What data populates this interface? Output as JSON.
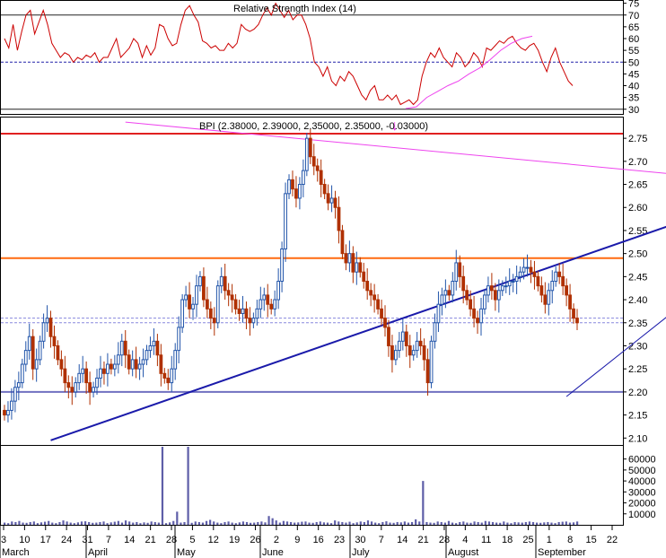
{
  "chart_data": [
    {
      "type": "line",
      "panel": "rsi",
      "title": "Relative Strength Index (14)",
      "ylim": [
        28,
        76
      ],
      "yticks": [
        30,
        35,
        40,
        45,
        50,
        55,
        60,
        65,
        70,
        75
      ],
      "reference_lines": [
        30,
        50,
        70
      ],
      "line_color": "#cc0000",
      "trendline_color": "#ee44ee",
      "series": [
        {
          "values": [
            60,
            56,
            66,
            55,
            63,
            70,
            72,
            62,
            67,
            72,
            66,
            58,
            55,
            52,
            54,
            53,
            50,
            52,
            51,
            53,
            52,
            54,
            50,
            52,
            52,
            56,
            60,
            52,
            54,
            56,
            60,
            58,
            52,
            57,
            53,
            56,
            66,
            65,
            60,
            57,
            58,
            66,
            72,
            74,
            70,
            67,
            59,
            58,
            56,
            57,
            55,
            55,
            58,
            56,
            58,
            66,
            64,
            63,
            64,
            66,
            70,
            73,
            70,
            75,
            72,
            69,
            72,
            68,
            70,
            70,
            66,
            60,
            50,
            48,
            44,
            48,
            42,
            40,
            44,
            42,
            46,
            44,
            40,
            36,
            34,
            38,
            40,
            34,
            34,
            36,
            34,
            36,
            32,
            33,
            34,
            32,
            34,
            44,
            50,
            54,
            52,
            56,
            52,
            50,
            48,
            54,
            52,
            48,
            50,
            54,
            52,
            48,
            56,
            55,
            57,
            59,
            58,
            60,
            61,
            58,
            56,
            55,
            57,
            58,
            55,
            50,
            46,
            52,
            56,
            50,
            46,
            42,
            40
          ]
        },
        {
          "values": [
            30.3,
            31,
            35,
            37.5,
            40,
            42,
            45,
            47.5,
            51,
            55,
            58,
            60,
            61
          ]
        }
      ]
    },
    {
      "type": "candlestick",
      "panel": "price",
      "title": "BPI (2.38000, 2.39000, 2.35000, 2.35000, -0.03000)",
      "ylim": [
        2.085,
        2.795
      ],
      "yticks": [
        2.1,
        2.15,
        2.2,
        2.25,
        2.3,
        2.35,
        2.4,
        2.45,
        2.5,
        2.55,
        2.6,
        2.65,
        2.7,
        2.75
      ],
      "up_color": "#2255aa",
      "down_color": "#b03000",
      "close": [
        2.15,
        2.16,
        2.18,
        2.21,
        2.22,
        2.26,
        2.29,
        2.32,
        2.25,
        2.27,
        2.31,
        2.35,
        2.36,
        2.32,
        2.3,
        2.27,
        2.25,
        2.22,
        2.21,
        2.2,
        2.22,
        2.24,
        2.25,
        2.22,
        2.2,
        2.21,
        2.23,
        2.25,
        2.24,
        2.26,
        2.25,
        2.26,
        2.28,
        2.31,
        2.28,
        2.25,
        2.27,
        2.25,
        2.26,
        2.27,
        2.29,
        2.3,
        2.31,
        2.28,
        2.24,
        2.23,
        2.22,
        2.25,
        2.29,
        2.34,
        2.4,
        2.41,
        2.38,
        2.39,
        2.43,
        2.45,
        2.4,
        2.38,
        2.36,
        2.35,
        2.43,
        2.45,
        2.42,
        2.41,
        2.4,
        2.38,
        2.37,
        2.38,
        2.36,
        2.35,
        2.36,
        2.38,
        2.4,
        2.41,
        2.39,
        2.38,
        2.4,
        2.44,
        2.51,
        2.63,
        2.66,
        2.64,
        2.62,
        2.65,
        2.68,
        2.75,
        2.71,
        2.69,
        2.68,
        2.65,
        2.63,
        2.61,
        2.62,
        2.6,
        2.55,
        2.5,
        2.48,
        2.5,
        2.46,
        2.48,
        2.46,
        2.44,
        2.42,
        2.41,
        2.4,
        2.38,
        2.36,
        2.34,
        2.3,
        2.27,
        2.29,
        2.31,
        2.33,
        2.3,
        2.28,
        2.29,
        2.31,
        2.3,
        2.27,
        2.22,
        2.31,
        2.35,
        2.39,
        2.41,
        2.42,
        2.41,
        2.44,
        2.48,
        2.45,
        2.42,
        2.4,
        2.38,
        2.36,
        2.35,
        2.38,
        2.41,
        2.43,
        2.42,
        2.4,
        2.42,
        2.43,
        2.43,
        2.44,
        2.44,
        2.45,
        2.46,
        2.47,
        2.47,
        2.46,
        2.45,
        2.43,
        2.41,
        2.39,
        2.42,
        2.44,
        2.46,
        2.45,
        2.43,
        2.41,
        2.38,
        2.36,
        2.35
      ],
      "horizontal_lines": [
        {
          "value": 2.76,
          "color": "#e02020"
        },
        {
          "value": 2.49,
          "color": "#ff6a10"
        },
        {
          "value": 2.2,
          "color": "#7070c0"
        },
        {
          "value": 2.36,
          "color": "#8888dd",
          "dashed": true
        },
        {
          "value": 2.35,
          "color": "#8888dd",
          "dashed": true
        }
      ],
      "trendlines": [
        {
          "from": [
            16,
            2.095
          ],
          "to": [
            201,
            2.59
          ],
          "color": "#1a1aaa"
        },
        {
          "from": [
            37,
            2.785
          ],
          "to": [
            215,
            2.655
          ],
          "color": "#ee44ee"
        },
        {
          "from": [
            161,
            2.19
          ],
          "to": [
            210,
            2.49
          ],
          "color": "#1a1aaa"
        }
      ],
      "marker": {
        "index": 110,
        "value": 2.76,
        "glyph": "↓",
        "color": "#ee22ee"
      }
    },
    {
      "type": "bar",
      "panel": "volume",
      "yticks": [
        10000,
        20000,
        30000,
        40000,
        50000,
        60000
      ],
      "yticks_labels": [
        "10000",
        "20000",
        "30000",
        "40000",
        "50000",
        "60000"
      ],
      "ylim": [
        0,
        72000
      ],
      "bar_color": "#5e5ea8",
      "values": [
        2000,
        1500,
        3000,
        2500,
        3500,
        2000,
        1800,
        2500,
        3000,
        1500,
        2200,
        2800,
        3500,
        2000,
        1500,
        2500,
        4000,
        3000,
        2000,
        1500,
        2200,
        3000,
        3200,
        2500,
        1800,
        2000,
        2500,
        3000,
        1500,
        2200,
        2800,
        3500,
        2000,
        4000,
        3000,
        2000,
        2500,
        1500,
        2200,
        1800,
        3000,
        2500,
        2000,
        73000,
        1500,
        2200,
        3500,
        12000,
        2000,
        2500,
        73000,
        1800,
        3000,
        2500,
        2000,
        3500,
        4500,
        3000,
        2000,
        1500,
        2500,
        3000,
        2000,
        1500,
        2200,
        3000,
        2500,
        1800,
        2000,
        2500,
        3000,
        2200,
        8000,
        6000,
        4000,
        2000,
        3500,
        3000,
        2500,
        2000,
        2200,
        2800,
        3000,
        2000,
        1800,
        2500,
        3000,
        2200,
        2000,
        1500,
        4000,
        3000,
        2500,
        2000,
        2800,
        1500,
        2200,
        3000,
        2500,
        4000,
        3000,
        2000,
        1500,
        2500,
        3200,
        2000,
        1800,
        2500,
        2200,
        3000,
        2000,
        2500,
        5000,
        3000,
        40000,
        2500,
        2000,
        1800,
        3000,
        2500,
        2000,
        3500,
        2000,
        1500,
        2500,
        3000,
        2000,
        1800,
        3000,
        2500,
        2000,
        3500,
        3000,
        2500,
        2000,
        1800,
        3000,
        2000,
        1500,
        2500,
        2200,
        2000,
        2500,
        3000,
        2500,
        2000,
        1800,
        2200,
        2500,
        2000,
        1500,
        2500,
        2800,
        3000,
        2000,
        2200,
        3000
      ]
    },
    {
      "type": "axis",
      "panel": "x-axis",
      "day_ticks": [
        "3",
        "10",
        "17",
        "24",
        "31",
        "7",
        "14",
        "21",
        "28",
        "5",
        "12",
        "19",
        "26",
        "2",
        "9",
        "16",
        "23",
        "30",
        "7",
        "14",
        "21",
        "28",
        "4",
        "11",
        "18",
        "25",
        "1",
        "8",
        "15",
        "22"
      ],
      "months": [
        "March",
        "April",
        "May",
        "June",
        "July",
        "August",
        "September"
      ]
    }
  ]
}
